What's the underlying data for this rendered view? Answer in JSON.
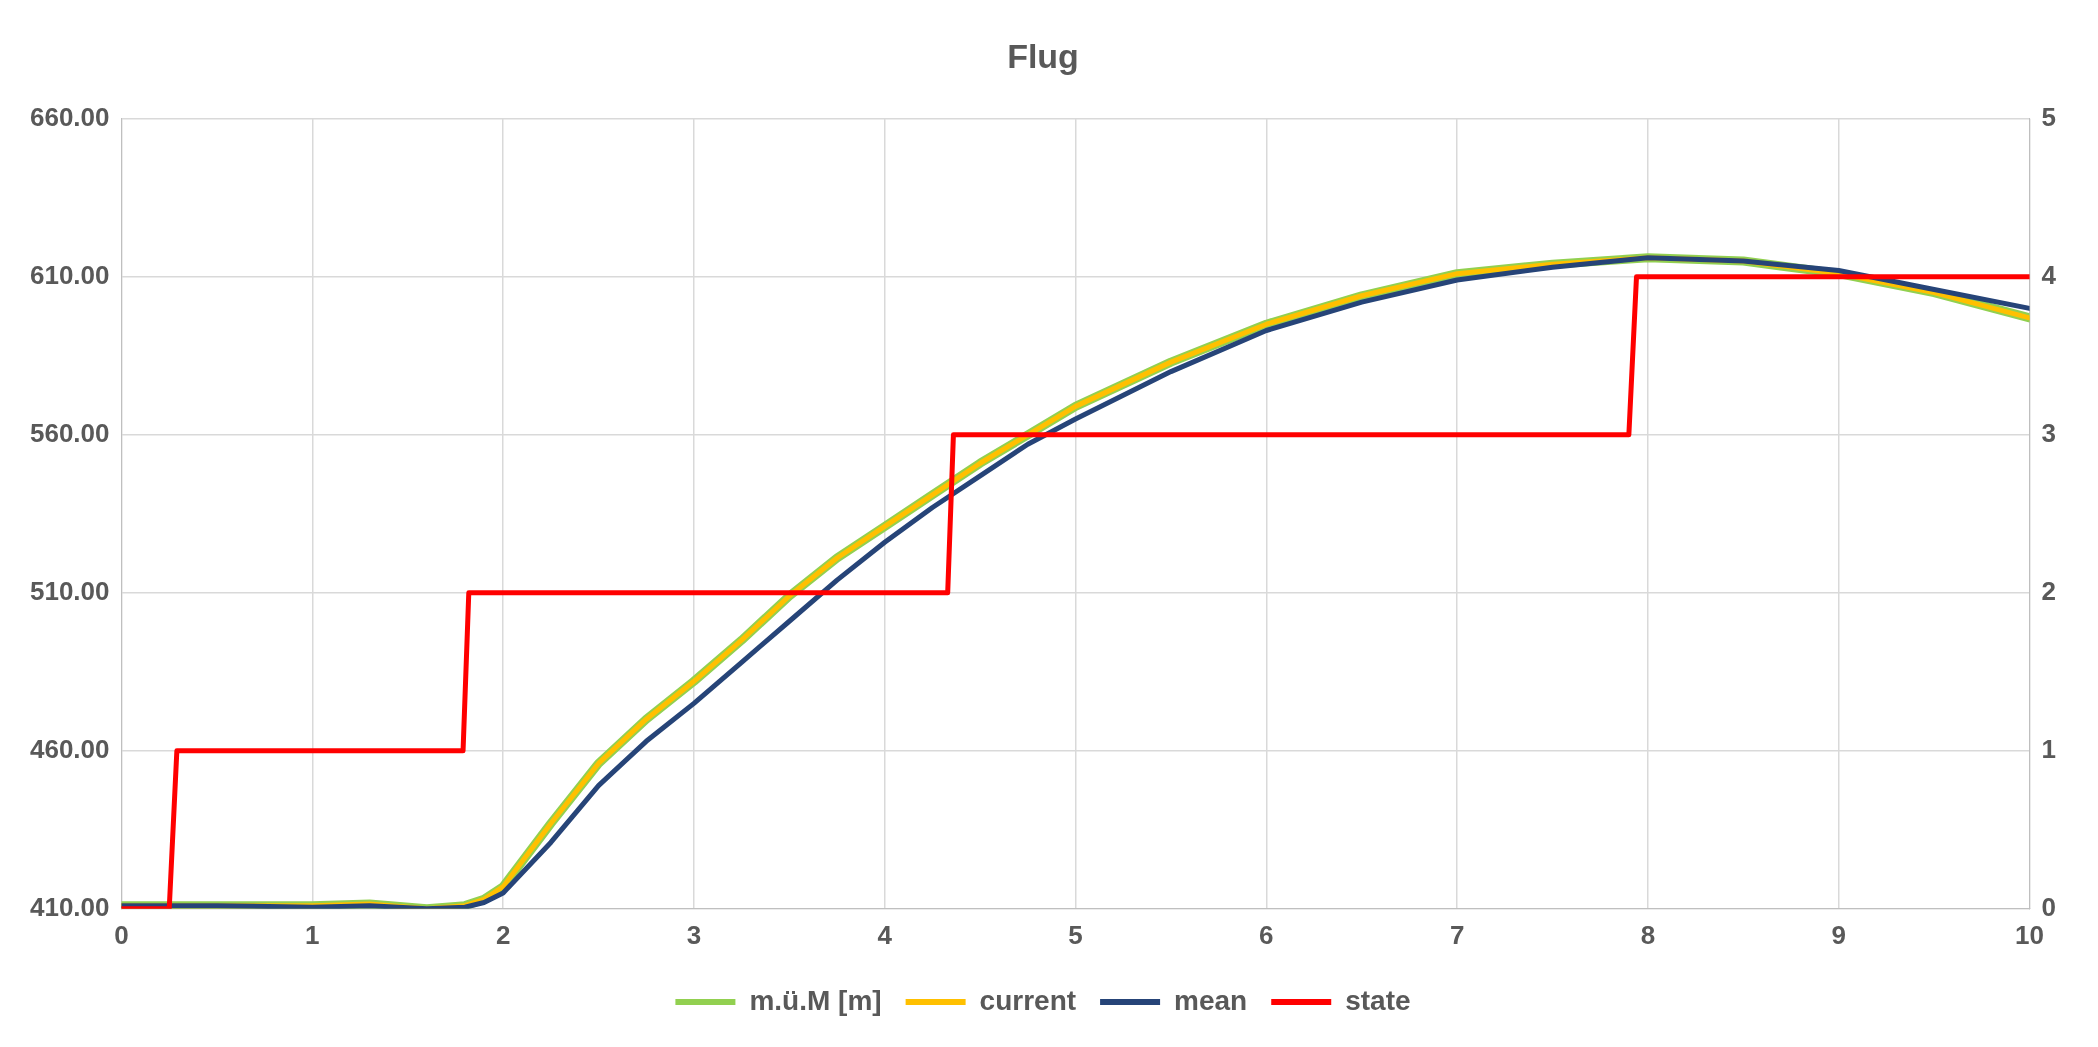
{
  "chart_data": {
    "type": "line",
    "title": "Flug",
    "x": [
      0,
      0.5,
      1,
      1.3,
      1.6,
      1.8,
      1.9,
      2,
      2.25,
      2.5,
      2.75,
      3,
      3.25,
      3.5,
      3.75,
      4,
      4.25,
      4.5,
      4.75,
      5,
      5.5,
      6,
      6.5,
      7,
      7.5,
      8,
      8.5,
      9,
      9.5,
      10
    ],
    "series": [
      {
        "name": "m.ü.M [m]",
        "color": "#92d050",
        "values": [
          411,
          411,
          411,
          411.5,
          410,
          411,
          413,
          417,
          437,
          456,
          470,
          482,
          495,
          509,
          521,
          531,
          541,
          551,
          560,
          569,
          583,
          595,
          604,
          611,
          614,
          616,
          615,
          611,
          605,
          597
        ]
      },
      {
        "name": "current",
        "color": "#ffc000",
        "values": [
          411,
          411,
          411,
          411.5,
          410,
          411,
          413,
          417,
          437,
          456,
          470,
          482,
          495,
          509,
          521,
          531,
          541,
          551,
          560,
          569,
          583,
          595,
          604,
          611,
          614,
          616,
          615,
          611,
          605,
          597
        ]
      },
      {
        "name": "mean",
        "color": "#264478",
        "values": [
          411,
          411,
          410.5,
          411,
          410,
          410.5,
          412,
          415,
          431,
          449,
          463,
          475,
          488,
          501,
          514,
          526,
          537,
          547,
          557,
          565,
          580,
          593,
          602,
          609,
          613,
          616,
          615,
          612,
          606,
          600
        ]
      },
      {
        "name": "state",
        "color": "#ff0000",
        "axis": "y2",
        "x": [
          0,
          0.25,
          0.29,
          1.79,
          1.82,
          4.33,
          4.36,
          7.9,
          7.94,
          10
        ],
        "values": [
          0,
          0,
          1,
          1,
          2,
          2,
          3,
          3,
          4,
          4
        ]
      }
    ],
    "xlim": [
      0,
      10
    ],
    "xticks": [
      0,
      1,
      2,
      3,
      4,
      5,
      6,
      7,
      8,
      9,
      10
    ],
    "ylim": [
      410,
      660
    ],
    "yticks": [
      {
        "value": 410,
        "label": "410.00"
      },
      {
        "value": 460,
        "label": "460.00"
      },
      {
        "value": 510,
        "label": "510.00"
      },
      {
        "value": 560,
        "label": "560.00"
      },
      {
        "value": 610,
        "label": "610.00"
      },
      {
        "value": 660,
        "label": "660.00"
      }
    ],
    "y2lim": [
      0,
      5
    ],
    "y2ticks": [
      0,
      1,
      2,
      3,
      4,
      5
    ],
    "grid": true,
    "legend": "bottom",
    "marker": "none",
    "line_style": "solid"
  }
}
